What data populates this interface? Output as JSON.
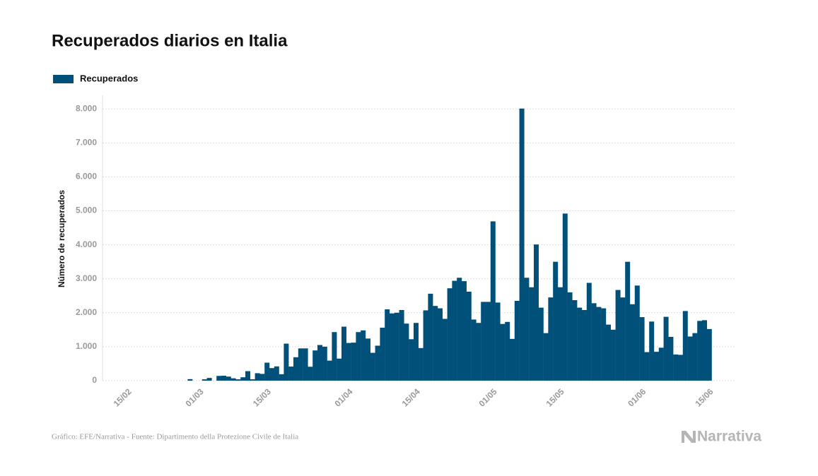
{
  "chart_data": {
    "type": "bar",
    "title": "Recuperados diarios en Italia",
    "y_label": "Número de recuperados",
    "footer": "Gráfico: EFE/Narrativa - Fuente: Dipartimento della Protezione Civile de Italia",
    "brand": "Narrativa",
    "categories": [
      "15/02",
      null,
      null,
      null,
      null,
      null,
      null,
      null,
      null,
      null,
      null,
      null,
      null,
      null,
      null,
      "01/03",
      null,
      null,
      null,
      null,
      null,
      null,
      null,
      null,
      null,
      null,
      null,
      null,
      null,
      "15/03",
      null,
      null,
      null,
      null,
      null,
      null,
      null,
      null,
      null,
      null,
      null,
      null,
      null,
      null,
      null,
      null,
      "01/04",
      null,
      null,
      null,
      null,
      null,
      null,
      null,
      null,
      null,
      null,
      null,
      null,
      null,
      "15/04",
      null,
      null,
      null,
      null,
      null,
      null,
      null,
      null,
      null,
      null,
      null,
      null,
      null,
      null,
      null,
      "01/05",
      null,
      null,
      null,
      null,
      null,
      null,
      null,
      null,
      null,
      null,
      null,
      null,
      null,
      "15/05",
      null,
      null,
      null,
      null,
      null,
      null,
      null,
      null,
      null,
      null,
      null,
      null,
      null,
      null,
      null,
      null,
      "01/06",
      null,
      null,
      null,
      null,
      null,
      null,
      null,
      null,
      null,
      null,
      null,
      null,
      null,
      "15/06"
    ],
    "series": [
      {
        "name": "Recuperados",
        "color": "#00507a",
        "values": [
          0,
          0,
          0,
          0,
          0,
          0,
          0,
          0,
          0,
          0,
          0,
          0,
          0,
          45,
          0,
          0,
          40,
          80,
          0,
          140,
          145,
          120,
          70,
          40,
          100,
          280,
          40,
          220,
          200,
          530,
          370,
          420,
          190,
          1090,
          415,
          690,
          950,
          950,
          410,
          890,
          1050,
          1000,
          590,
          1430,
          650,
          1590,
          1110,
          1120,
          1430,
          1480,
          1240,
          820,
          1030,
          1560,
          2100,
          1980,
          2000,
          2080,
          1680,
          1220,
          1700,
          960,
          2070,
          2560,
          2200,
          2130,
          1820,
          2720,
          2940,
          3030,
          2930,
          2620,
          1800,
          1700,
          2320,
          2320,
          4690,
          2300,
          1670,
          1730,
          1230,
          2350,
          8010,
          3030,
          2750,
          4010,
          2150,
          1400,
          2450,
          3500,
          2750,
          4920,
          2600,
          2370,
          2150,
          2080,
          2880,
          2280,
          2170,
          2130,
          1650,
          1500,
          2670,
          2450,
          3500,
          2250,
          2800,
          1870,
          840,
          1740,
          850,
          970,
          1880,
          1290,
          770,
          760,
          2050,
          1300,
          1400,
          1760,
          1780,
          1520
        ]
      }
    ],
    "ylim": [
      0,
      8400
    ],
    "yticks": [
      0,
      {
        "value": 1000,
        "label": "1.000"
      },
      {
        "value": 2000,
        "label": "2.000"
      },
      {
        "value": 3000,
        "label": "3.000"
      },
      {
        "value": 4000,
        "label": "4.000"
      },
      {
        "value": 5000,
        "label": "5.000"
      },
      {
        "value": 6000,
        "label": "6.000"
      },
      {
        "value": 7000,
        "label": "7.000"
      },
      {
        "value": 8000,
        "label": "8.000"
      }
    ],
    "grid": true
  }
}
